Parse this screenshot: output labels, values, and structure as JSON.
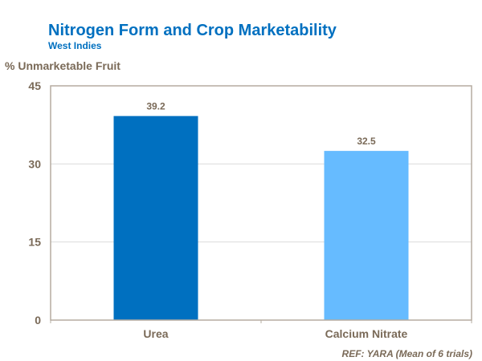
{
  "chart_data": {
    "type": "bar",
    "title": "Nitrogen Form and Crop Marketability",
    "subtitle": "West Indies",
    "ylabel": "% Unmarketable Fruit",
    "xlabel": "",
    "categories": [
      "Urea",
      "Calcium Nitrate"
    ],
    "values": [
      39.2,
      32.5
    ],
    "data_labels": [
      "39.2",
      "32.5"
    ],
    "colors": [
      "#0070C0",
      "#66BBFF"
    ],
    "ylim": [
      0,
      45
    ],
    "yticks": [
      0,
      15,
      30,
      45
    ],
    "grid": true,
    "legend": "none",
    "footnote": "REF: YARA (Mean of 6 trials)"
  }
}
